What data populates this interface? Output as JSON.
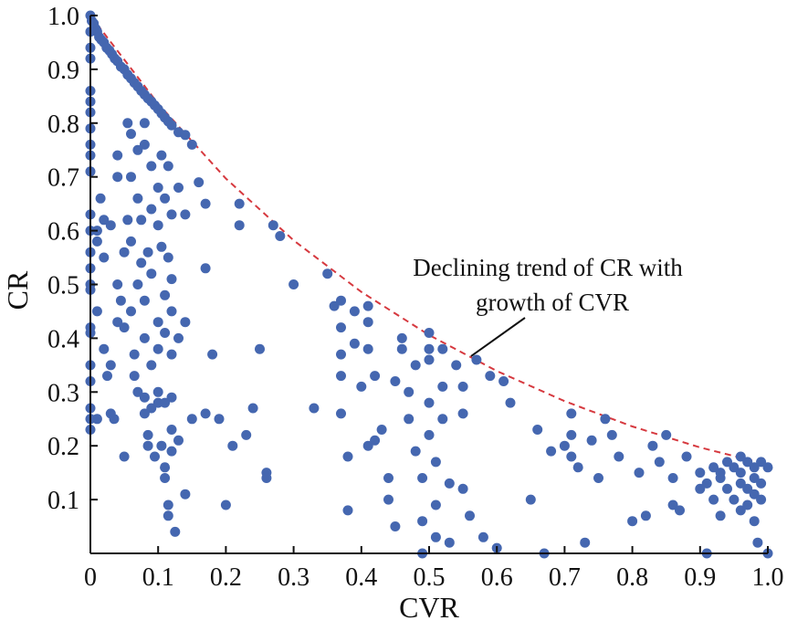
{
  "chart_data": {
    "type": "scatter",
    "xlabel": "CVR",
    "ylabel": "CR",
    "xlim": [
      0,
      1.0
    ],
    "ylim": [
      0,
      1.0
    ],
    "x_ticks": [
      "0",
      "0.1",
      "0.2",
      "0.3",
      "0.4",
      "0.5",
      "0.6",
      "0.7",
      "0.8",
      "0.9",
      "1.0"
    ],
    "y_ticks": [
      "0.1",
      "0.2",
      "0.3",
      "0.4",
      "0.5",
      "0.6",
      "0.7",
      "0.8",
      "0.9",
      "1.0"
    ],
    "grid": false,
    "marker_color": "#4567b0",
    "trend_color": "#d6393f",
    "annotation": {
      "lines": [
        "Declining trend of CR with",
        "growth of CVR"
      ],
      "points_to": [
        0.57,
        0.37
      ]
    },
    "trend_curve": [
      [
        0,
        1.0
      ],
      [
        0.1,
        0.836
      ],
      [
        0.2,
        0.697
      ],
      [
        0.3,
        0.582
      ],
      [
        0.4,
        0.486
      ],
      [
        0.5,
        0.406
      ],
      [
        0.6,
        0.339
      ],
      [
        0.7,
        0.283
      ],
      [
        0.8,
        0.236
      ],
      [
        0.9,
        0.197
      ],
      [
        1.0,
        0.165
      ]
    ],
    "points": [
      [
        0.0,
        1.0
      ],
      [
        0.002,
        0.99
      ],
      [
        0.005,
        0.985
      ],
      [
        0.008,
        0.975
      ],
      [
        0.01,
        0.97
      ],
      [
        0.013,
        0.96
      ],
      [
        0.016,
        0.955
      ],
      [
        0.02,
        0.95
      ],
      [
        0.024,
        0.94
      ],
      [
        0.028,
        0.935
      ],
      [
        0.032,
        0.928
      ],
      [
        0.036,
        0.92
      ],
      [
        0.04,
        0.915
      ],
      [
        0.045,
        0.905
      ],
      [
        0.05,
        0.9
      ],
      [
        0.055,
        0.89
      ],
      [
        0.06,
        0.883
      ],
      [
        0.065,
        0.875
      ],
      [
        0.07,
        0.868
      ],
      [
        0.075,
        0.86
      ],
      [
        0.08,
        0.853
      ],
      [
        0.085,
        0.846
      ],
      [
        0.09,
        0.84
      ],
      [
        0.095,
        0.833
      ],
      [
        0.1,
        0.826
      ],
      [
        0.105,
        0.818
      ],
      [
        0.11,
        0.81
      ],
      [
        0.115,
        0.803
      ],
      [
        0.12,
        0.796
      ],
      [
        0.13,
        0.783
      ],
      [
        0.14,
        0.778
      ],
      [
        0.0,
        0.97
      ],
      [
        0.0,
        0.94
      ],
      [
        0.0,
        0.92
      ],
      [
        0.0,
        0.86
      ],
      [
        0.0,
        0.84
      ],
      [
        0.0,
        0.82
      ],
      [
        0.0,
        0.79
      ],
      [
        0.0,
        0.76
      ],
      [
        0.0,
        0.74
      ],
      [
        0.0,
        0.71
      ],
      [
        0.0,
        0.63
      ],
      [
        0.0,
        0.6
      ],
      [
        0.0,
        0.56
      ],
      [
        0.0,
        0.53
      ],
      [
        0.0,
        0.5
      ],
      [
        0.0,
        0.49
      ],
      [
        0.0,
        0.42
      ],
      [
        0.0,
        0.41
      ],
      [
        0.0,
        0.35
      ],
      [
        0.0,
        0.32
      ],
      [
        0.0,
        0.27
      ],
      [
        0.0,
        0.25
      ],
      [
        0.0,
        0.23
      ],
      [
        0.01,
        0.6
      ],
      [
        0.01,
        0.58
      ],
      [
        0.01,
        0.45
      ],
      [
        0.01,
        0.25
      ],
      [
        0.015,
        0.66
      ],
      [
        0.02,
        0.62
      ],
      [
        0.02,
        0.55
      ],
      [
        0.02,
        0.38
      ],
      [
        0.025,
        0.33
      ],
      [
        0.03,
        0.61
      ],
      [
        0.03,
        0.35
      ],
      [
        0.03,
        0.26
      ],
      [
        0.035,
        0.25
      ],
      [
        0.04,
        0.7
      ],
      [
        0.04,
        0.74
      ],
      [
        0.04,
        0.5
      ],
      [
        0.04,
        0.43
      ],
      [
        0.045,
        0.47
      ],
      [
        0.05,
        0.56
      ],
      [
        0.05,
        0.42
      ],
      [
        0.05,
        0.18
      ],
      [
        0.055,
        0.8
      ],
      [
        0.055,
        0.62
      ],
      [
        0.06,
        0.78
      ],
      [
        0.06,
        0.7
      ],
      [
        0.06,
        0.58
      ],
      [
        0.06,
        0.45
      ],
      [
        0.065,
        0.33
      ],
      [
        0.065,
        0.37
      ],
      [
        0.07,
        0.75
      ],
      [
        0.07,
        0.66
      ],
      [
        0.07,
        0.5
      ],
      [
        0.07,
        0.3
      ],
      [
        0.075,
        0.62
      ],
      [
        0.075,
        0.54
      ],
      [
        0.08,
        0.8
      ],
      [
        0.08,
        0.76
      ],
      [
        0.08,
        0.47
      ],
      [
        0.08,
        0.4
      ],
      [
        0.08,
        0.29
      ],
      [
        0.08,
        0.26
      ],
      [
        0.085,
        0.56
      ],
      [
        0.085,
        0.22
      ],
      [
        0.085,
        0.2
      ],
      [
        0.09,
        0.72
      ],
      [
        0.09,
        0.64
      ],
      [
        0.09,
        0.52
      ],
      [
        0.09,
        0.35
      ],
      [
        0.09,
        0.27
      ],
      [
        0.095,
        0.18
      ],
      [
        0.1,
        0.68
      ],
      [
        0.1,
        0.61
      ],
      [
        0.1,
        0.43
      ],
      [
        0.1,
        0.38
      ],
      [
        0.1,
        0.3
      ],
      [
        0.1,
        0.28
      ],
      [
        0.105,
        0.74
      ],
      [
        0.105,
        0.57
      ],
      [
        0.105,
        0.2
      ],
      [
        0.11,
        0.66
      ],
      [
        0.11,
        0.48
      ],
      [
        0.11,
        0.41
      ],
      [
        0.11,
        0.28
      ],
      [
        0.11,
        0.16
      ],
      [
        0.11,
        0.14
      ],
      [
        0.115,
        0.72
      ],
      [
        0.115,
        0.55
      ],
      [
        0.115,
        0.09
      ],
      [
        0.115,
        0.07
      ],
      [
        0.12,
        0.63
      ],
      [
        0.12,
        0.51
      ],
      [
        0.12,
        0.45
      ],
      [
        0.12,
        0.37
      ],
      [
        0.12,
        0.29
      ],
      [
        0.12,
        0.23
      ],
      [
        0.12,
        0.19
      ],
      [
        0.125,
        0.04
      ],
      [
        0.13,
        0.68
      ],
      [
        0.13,
        0.4
      ],
      [
        0.13,
        0.21
      ],
      [
        0.14,
        0.63
      ],
      [
        0.14,
        0.43
      ],
      [
        0.14,
        0.11
      ],
      [
        0.15,
        0.25
      ],
      [
        0.15,
        0.76
      ],
      [
        0.16,
        0.69
      ],
      [
        0.17,
        0.53
      ],
      [
        0.17,
        0.65
      ],
      [
        0.17,
        0.26
      ],
      [
        0.18,
        0.37
      ],
      [
        0.19,
        0.25
      ],
      [
        0.2,
        0.09
      ],
      [
        0.21,
        0.2
      ],
      [
        0.22,
        0.65
      ],
      [
        0.22,
        0.61
      ],
      [
        0.23,
        0.22
      ],
      [
        0.24,
        0.27
      ],
      [
        0.25,
        0.38
      ],
      [
        0.26,
        0.15
      ],
      [
        0.26,
        0.14
      ],
      [
        0.27,
        0.61
      ],
      [
        0.28,
        0.59
      ],
      [
        0.3,
        0.5
      ],
      [
        0.33,
        0.27
      ],
      [
        0.35,
        0.52
      ],
      [
        0.36,
        0.46
      ],
      [
        0.37,
        0.47
      ],
      [
        0.37,
        0.42
      ],
      [
        0.37,
        0.37
      ],
      [
        0.37,
        0.33
      ],
      [
        0.37,
        0.26
      ],
      [
        0.38,
        0.18
      ],
      [
        0.38,
        0.08
      ],
      [
        0.39,
        0.45
      ],
      [
        0.39,
        0.39
      ],
      [
        0.4,
        0.31
      ],
      [
        0.41,
        0.46
      ],
      [
        0.41,
        0.43
      ],
      [
        0.41,
        0.38
      ],
      [
        0.41,
        0.2
      ],
      [
        0.42,
        0.21
      ],
      [
        0.42,
        0.33
      ],
      [
        0.43,
        0.23
      ],
      [
        0.44,
        0.14
      ],
      [
        0.44,
        0.1
      ],
      [
        0.45,
        0.32
      ],
      [
        0.45,
        0.05
      ],
      [
        0.46,
        0.4
      ],
      [
        0.46,
        0.38
      ],
      [
        0.47,
        0.3
      ],
      [
        0.47,
        0.25
      ],
      [
        0.48,
        0.35
      ],
      [
        0.48,
        0.19
      ],
      [
        0.49,
        0.14
      ],
      [
        0.49,
        0.06
      ],
      [
        0.49,
        0.0
      ],
      [
        0.5,
        0.41
      ],
      [
        0.5,
        0.38
      ],
      [
        0.5,
        0.36
      ],
      [
        0.5,
        0.28
      ],
      [
        0.5,
        0.22
      ],
      [
        0.51,
        0.17
      ],
      [
        0.51,
        0.09
      ],
      [
        0.51,
        0.03
      ],
      [
        0.52,
        0.38
      ],
      [
        0.52,
        0.31
      ],
      [
        0.52,
        0.25
      ],
      [
        0.53,
        0.13
      ],
      [
        0.53,
        0.02
      ],
      [
        0.54,
        0.35
      ],
      [
        0.55,
        0.31
      ],
      [
        0.55,
        0.26
      ],
      [
        0.55,
        0.12
      ],
      [
        0.56,
        0.07
      ],
      [
        0.57,
        0.36
      ],
      [
        0.58,
        0.03
      ],
      [
        0.59,
        0.33
      ],
      [
        0.6,
        0.01
      ],
      [
        0.61,
        0.32
      ],
      [
        0.62,
        0.28
      ],
      [
        0.65,
        0.1
      ],
      [
        0.66,
        0.23
      ],
      [
        0.67,
        0.0
      ],
      [
        0.68,
        0.19
      ],
      [
        0.7,
        0.2
      ],
      [
        0.71,
        0.26
      ],
      [
        0.71,
        0.22
      ],
      [
        0.71,
        0.18
      ],
      [
        0.72,
        0.16
      ],
      [
        0.73,
        0.02
      ],
      [
        0.74,
        0.21
      ],
      [
        0.75,
        0.14
      ],
      [
        0.76,
        0.25
      ],
      [
        0.77,
        0.22
      ],
      [
        0.78,
        0.18
      ],
      [
        0.8,
        0.06
      ],
      [
        0.81,
        0.15
      ],
      [
        0.82,
        0.07
      ],
      [
        0.83,
        0.2
      ],
      [
        0.84,
        0.17
      ],
      [
        0.85,
        0.22
      ],
      [
        0.86,
        0.14
      ],
      [
        0.86,
        0.09
      ],
      [
        0.87,
        0.08
      ],
      [
        0.88,
        0.18
      ],
      [
        0.9,
        0.15
      ],
      [
        0.91,
        0.13
      ],
      [
        0.91,
        0.0
      ],
      [
        0.92,
        0.16
      ],
      [
        0.92,
        0.1
      ],
      [
        0.93,
        0.14
      ],
      [
        0.93,
        0.07
      ],
      [
        0.94,
        0.17
      ],
      [
        0.94,
        0.12
      ],
      [
        0.95,
        0.16
      ],
      [
        0.95,
        0.1
      ],
      [
        0.96,
        0.15
      ],
      [
        0.96,
        0.13
      ],
      [
        0.96,
        0.08
      ],
      [
        0.97,
        0.17
      ],
      [
        0.97,
        0.12
      ],
      [
        0.97,
        0.09
      ],
      [
        0.98,
        0.16
      ],
      [
        0.98,
        0.14
      ],
      [
        0.98,
        0.11
      ],
      [
        0.98,
        0.06
      ],
      [
        0.99,
        0.17
      ],
      [
        0.99,
        0.13
      ],
      [
        0.99,
        0.1
      ],
      [
        1.0,
        0.16
      ],
      [
        1.0,
        0.0
      ],
      [
        0.985,
        0.02
      ],
      [
        0.96,
        0.18
      ],
      [
        0.93,
        0.15
      ],
      [
        0.9,
        0.12
      ]
    ]
  }
}
